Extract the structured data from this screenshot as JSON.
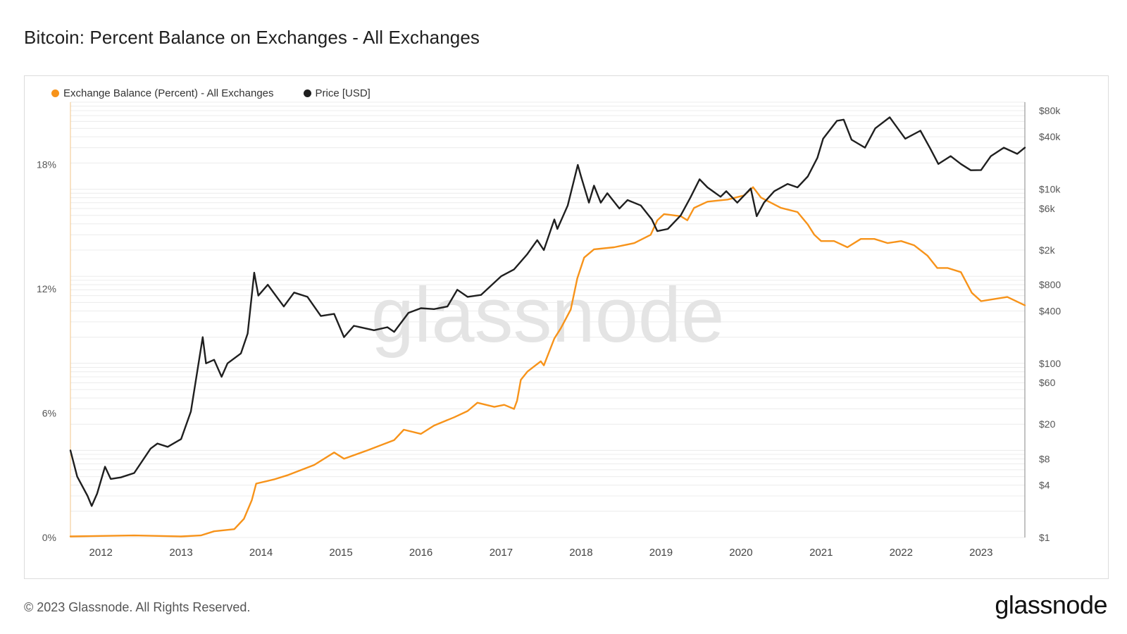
{
  "title": "Bitcoin: Percent Balance on Exchanges - All Exchanges",
  "footer": {
    "copyright": "© 2023 Glassnode. All Rights Reserved.",
    "brand": "glassnode"
  },
  "watermark": "glassnode",
  "colors": {
    "balance": "#f7931a",
    "price": "#1f1f1f",
    "grid": "#ececec"
  },
  "chart_data": {
    "type": "line",
    "title": "Bitcoin: Percent Balance on Exchanges - All Exchanges",
    "legend_position": "top-left",
    "grid": true,
    "x_axis": {
      "type": "date",
      "range": [
        "2011-08-15",
        "2023-07-20"
      ],
      "tick_labels": [
        "2012",
        "2013",
        "2014",
        "2015",
        "2016",
        "2017",
        "2018",
        "2019",
        "2020",
        "2021",
        "2022",
        "2023"
      ]
    },
    "y_axis_left": {
      "range": [
        0,
        21
      ],
      "unit": "%",
      "ticks": [
        0,
        6,
        12,
        18
      ],
      "tick_labels": [
        "0%",
        "6%",
        "12%",
        "18%"
      ]
    },
    "y_axis_right": {
      "scale": "log",
      "range": [
        1,
        100000
      ],
      "ticks": [
        1,
        4,
        8,
        20,
        60,
        100,
        400,
        800,
        2000,
        6000,
        10000,
        40000,
        80000
      ],
      "tick_labels": [
        "$1",
        "$4",
        "$8",
        "$20",
        "$60",
        "$100",
        "$400",
        "$800",
        "$2k",
        "$6k",
        "$10k",
        "$40k",
        "$80k"
      ]
    },
    "series": [
      {
        "name": "Exchange Balance (Percent) - All Exchanges",
        "axis": "left",
        "color": "#f7931a",
        "points": [
          [
            "2011-08-15",
            0.05
          ],
          [
            "2012-06-01",
            0.1
          ],
          [
            "2013-01-01",
            0.05
          ],
          [
            "2013-04-01",
            0.1
          ],
          [
            "2013-06-01",
            0.3
          ],
          [
            "2013-09-01",
            0.4
          ],
          [
            "2013-10-15",
            0.9
          ],
          [
            "2013-11-20",
            1.8
          ],
          [
            "2013-12-10",
            2.6
          ],
          [
            "2014-03-01",
            2.8
          ],
          [
            "2014-05-01",
            3.0
          ],
          [
            "2014-09-01",
            3.5
          ],
          [
            "2014-12-01",
            4.1
          ],
          [
            "2015-01-15",
            3.8
          ],
          [
            "2015-05-01",
            4.2
          ],
          [
            "2015-09-01",
            4.7
          ],
          [
            "2015-10-15",
            5.2
          ],
          [
            "2016-01-01",
            5.0
          ],
          [
            "2016-03-01",
            5.4
          ],
          [
            "2016-06-01",
            5.8
          ],
          [
            "2016-08-01",
            6.1
          ],
          [
            "2016-09-15",
            6.5
          ],
          [
            "2016-12-01",
            6.3
          ],
          [
            "2017-01-15",
            6.4
          ],
          [
            "2017-03-01",
            6.2
          ],
          [
            "2017-03-15",
            6.6
          ],
          [
            "2017-04-01",
            7.6
          ],
          [
            "2017-05-01",
            8.0
          ],
          [
            "2017-07-01",
            8.5
          ],
          [
            "2017-07-15",
            8.3
          ],
          [
            "2017-09-01",
            9.6
          ],
          [
            "2017-10-01",
            10.1
          ],
          [
            "2017-11-15",
            11.0
          ],
          [
            "2017-12-15",
            12.5
          ],
          [
            "2018-01-15",
            13.5
          ],
          [
            "2018-03-01",
            13.9
          ],
          [
            "2018-06-01",
            14.0
          ],
          [
            "2018-09-01",
            14.2
          ],
          [
            "2018-11-15",
            14.6
          ],
          [
            "2018-12-15",
            15.3
          ],
          [
            "2019-01-15",
            15.6
          ],
          [
            "2019-04-01",
            15.5
          ],
          [
            "2019-05-01",
            15.3
          ],
          [
            "2019-06-01",
            15.9
          ],
          [
            "2019-08-01",
            16.2
          ],
          [
            "2019-11-01",
            16.3
          ],
          [
            "2020-01-15",
            16.5
          ],
          [
            "2020-02-25",
            16.9
          ],
          [
            "2020-04-01",
            16.4
          ],
          [
            "2020-07-01",
            15.9
          ],
          [
            "2020-09-15",
            15.7
          ],
          [
            "2020-11-01",
            15.1
          ],
          [
            "2020-12-01",
            14.6
          ],
          [
            "2021-01-01",
            14.3
          ],
          [
            "2021-03-01",
            14.3
          ],
          [
            "2021-05-01",
            14.0
          ],
          [
            "2021-07-01",
            14.4
          ],
          [
            "2021-09-01",
            14.4
          ],
          [
            "2021-11-01",
            14.2
          ],
          [
            "2022-01-01",
            14.3
          ],
          [
            "2022-03-01",
            14.1
          ],
          [
            "2022-05-01",
            13.6
          ],
          [
            "2022-06-15",
            13.0
          ],
          [
            "2022-08-01",
            13.0
          ],
          [
            "2022-10-01",
            12.8
          ],
          [
            "2022-11-20",
            11.8
          ],
          [
            "2023-01-01",
            11.4
          ],
          [
            "2023-03-01",
            11.5
          ],
          [
            "2023-05-01",
            11.6
          ],
          [
            "2023-07-20",
            11.2
          ]
        ]
      },
      {
        "name": "Price [USD]",
        "axis": "right",
        "color": "#1f1f1f",
        "points": [
          [
            "2011-08-15",
            10
          ],
          [
            "2011-09-15",
            5
          ],
          [
            "2011-11-01",
            3
          ],
          [
            "2011-11-20",
            2.3
          ],
          [
            "2011-12-15",
            3.2
          ],
          [
            "2012-01-20",
            6.5
          ],
          [
            "2012-02-15",
            4.7
          ],
          [
            "2012-04-01",
            4.9
          ],
          [
            "2012-06-01",
            5.5
          ],
          [
            "2012-08-15",
            10.5
          ],
          [
            "2012-09-15",
            12
          ],
          [
            "2012-11-01",
            11
          ],
          [
            "2013-01-01",
            13.5
          ],
          [
            "2013-02-15",
            28
          ],
          [
            "2013-04-10",
            200
          ],
          [
            "2013-04-25",
            100
          ],
          [
            "2013-06-01",
            110
          ],
          [
            "2013-07-05",
            70
          ],
          [
            "2013-08-01",
            100
          ],
          [
            "2013-10-01",
            130
          ],
          [
            "2013-11-01",
            220
          ],
          [
            "2013-12-01",
            1100
          ],
          [
            "2013-12-20",
            600
          ],
          [
            "2014-02-01",
            800
          ],
          [
            "2014-04-15",
            450
          ],
          [
            "2014-06-01",
            650
          ],
          [
            "2014-08-01",
            580
          ],
          [
            "2014-10-01",
            350
          ],
          [
            "2014-12-01",
            370
          ],
          [
            "2015-01-15",
            200
          ],
          [
            "2015-03-01",
            270
          ],
          [
            "2015-06-01",
            240
          ],
          [
            "2015-08-01",
            260
          ],
          [
            "2015-09-01",
            230
          ],
          [
            "2015-11-05",
            380
          ],
          [
            "2016-01-01",
            430
          ],
          [
            "2016-03-01",
            420
          ],
          [
            "2016-05-01",
            450
          ],
          [
            "2016-06-15",
            700
          ],
          [
            "2016-08-01",
            580
          ],
          [
            "2016-10-01",
            610
          ],
          [
            "2017-01-01",
            1000
          ],
          [
            "2017-03-01",
            1200
          ],
          [
            "2017-05-01",
            1800
          ],
          [
            "2017-06-15",
            2600
          ],
          [
            "2017-07-15",
            2000
          ],
          [
            "2017-09-01",
            4500
          ],
          [
            "2017-09-15",
            3500
          ],
          [
            "2017-11-01",
            6500
          ],
          [
            "2017-12-17",
            19000
          ],
          [
            "2018-01-01",
            14000
          ],
          [
            "2018-02-06",
            7000
          ],
          [
            "2018-03-01",
            11000
          ],
          [
            "2018-04-01",
            7000
          ],
          [
            "2018-05-01",
            9000
          ],
          [
            "2018-06-25",
            6000
          ],
          [
            "2018-08-01",
            7500
          ],
          [
            "2018-10-01",
            6500
          ],
          [
            "2018-11-20",
            4500
          ],
          [
            "2018-12-15",
            3300
          ],
          [
            "2019-02-01",
            3500
          ],
          [
            "2019-04-01",
            5000
          ],
          [
            "2019-05-15",
            8000
          ],
          [
            "2019-06-26",
            13000
          ],
          [
            "2019-08-01",
            10500
          ],
          [
            "2019-09-30",
            8200
          ],
          [
            "2019-10-26",
            9500
          ],
          [
            "2019-12-15",
            7000
          ],
          [
            "2020-02-15",
            10200
          ],
          [
            "2020-03-13",
            4900
          ],
          [
            "2020-04-15",
            7000
          ],
          [
            "2020-06-01",
            9500
          ],
          [
            "2020-08-01",
            11500
          ],
          [
            "2020-09-15",
            10500
          ],
          [
            "2020-11-01",
            14000
          ],
          [
            "2020-12-15",
            23000
          ],
          [
            "2021-01-10",
            38000
          ],
          [
            "2021-03-14",
            61000
          ],
          [
            "2021-04-14",
            63000
          ],
          [
            "2021-05-20",
            37000
          ],
          [
            "2021-07-20",
            30000
          ],
          [
            "2021-09-05",
            50000
          ],
          [
            "2021-11-10",
            67000
          ],
          [
            "2022-01-20",
            38000
          ],
          [
            "2022-03-30",
            47000
          ],
          [
            "2022-05-15",
            29000
          ],
          [
            "2022-06-20",
            19500
          ],
          [
            "2022-08-15",
            24000
          ],
          [
            "2022-10-01",
            19500
          ],
          [
            "2022-11-15",
            16500
          ],
          [
            "2023-01-01",
            16600
          ],
          [
            "2023-02-15",
            24000
          ],
          [
            "2023-04-15",
            30000
          ],
          [
            "2023-06-15",
            25500
          ],
          [
            "2023-07-20",
            30000
          ]
        ]
      }
    ]
  }
}
